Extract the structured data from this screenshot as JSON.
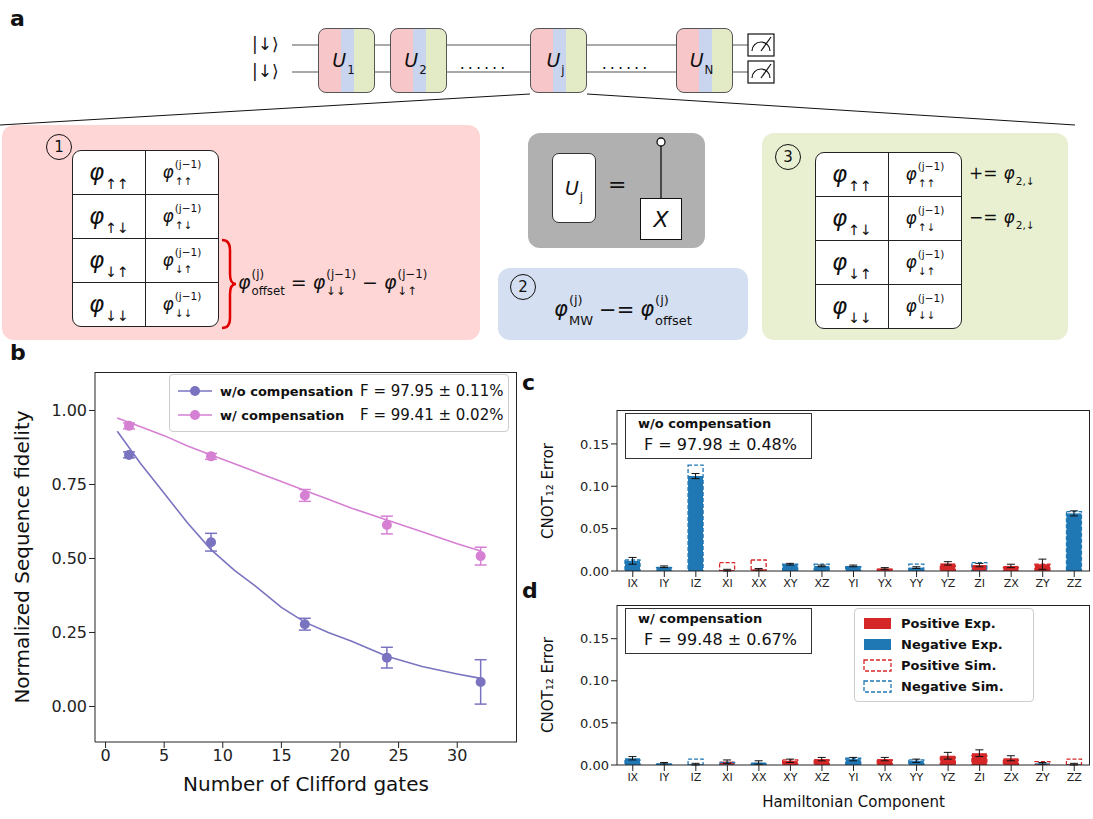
{
  "diagram": {
    "panel_label": "a",
    "inputs": [
      "|↓⟩",
      "|↓⟩"
    ],
    "sequence": [
      {
        "base": "U",
        "sub": "1"
      },
      {
        "base": "U",
        "sub": "2"
      },
      {
        "text": "......"
      },
      {
        "base": "U",
        "sub": "j"
      },
      {
        "text": "......"
      },
      {
        "base": "U",
        "sub": "N"
      }
    ],
    "step1": {
      "number": "1",
      "table": [
        [
          {
            "base": "φ",
            "sub": "↑↑"
          },
          {
            "base": "φ",
            "sub": "↑↑",
            "sup": "(j−1)"
          }
        ],
        [
          {
            "base": "φ",
            "sub": "↑↓"
          },
          {
            "base": "φ",
            "sub": "↑↓",
            "sup": "(j−1)"
          }
        ],
        [
          {
            "base": "φ",
            "sub": "↓↑"
          },
          {
            "base": "φ",
            "sub": "↓↑",
            "sup": "(j−1)"
          }
        ],
        [
          {
            "base": "φ",
            "sub": "↓↓"
          },
          {
            "base": "φ",
            "sub": "↓↓",
            "sup": "(j−1)"
          }
        ]
      ],
      "formula": [
        {
          "base": "φ",
          "sub": "offset",
          "sup": "(j)"
        },
        "=",
        {
          "base": "φ",
          "sub": "↓↓",
          "sup": "(j−1)"
        },
        "−",
        {
          "base": "φ",
          "sub": "↓↑",
          "sup": "(j−1)"
        }
      ]
    },
    "gate": {
      "lhs": {
        "base": "U",
        "sub": "j"
      },
      "relation": "=",
      "target": "X"
    },
    "step2": {
      "number": "2",
      "formula": [
        {
          "base": "φ",
          "sub": "MW",
          "sup": "(j)"
        },
        "−=",
        {
          "base": "φ",
          "sub": "offset",
          "sup": "(j)"
        }
      ]
    },
    "step3": {
      "number": "3",
      "table": [
        [
          {
            "base": "φ",
            "sub": "↑↑"
          },
          {
            "base": "φ",
            "sub": "↑↑",
            "sup": "(j−1)"
          }
        ],
        [
          {
            "base": "φ",
            "sub": "↑↓"
          },
          {
            "base": "φ",
            "sub": "↑↓",
            "sup": "(j−1)"
          }
        ],
        [
          {
            "base": "φ",
            "sub": "↓↑"
          },
          {
            "base": "φ",
            "sub": "↓↑",
            "sup": "(j−1)"
          }
        ],
        [
          {
            "base": "φ",
            "sub": "↓↓"
          },
          {
            "base": "φ",
            "sub": "↓↓",
            "sup": "(j−1)"
          }
        ]
      ],
      "updates": [
        [
          "+=",
          {
            "base": "φ",
            "sub": "2,↓"
          }
        ],
        [
          "−=",
          {
            "base": "φ",
            "sub": "2,↓"
          }
        ]
      ]
    }
  },
  "chart_data": [
    {
      "panel_label": "b",
      "type": "scatter",
      "xlabel": "Number of Clifford gates",
      "ylabel": "Normalized Sequence fidelity",
      "xlim": [
        -0.9,
        35.1
      ],
      "xticks": [
        0,
        5,
        10,
        15,
        20,
        25,
        30
      ],
      "ylim": [
        -0.12,
        1.13
      ],
      "yticks": [
        {
          "value": 0,
          "label": "0.00"
        },
        {
          "value": 0.25,
          "label": "0.25"
        },
        {
          "value": 0.5,
          "label": "0.50"
        },
        {
          "value": 0.75,
          "label": "0.75"
        },
        {
          "value": 1,
          "label": "1.00"
        }
      ],
      "legend": "upper right",
      "series": [
        {
          "name": "w/o compensation",
          "fidelity": "F = 97.95 ± 0.11%",
          "color": "#7a74c0",
          "marker": "circle",
          "x": [
            2,
            9,
            17,
            24,
            32
          ],
          "values": [
            0.85,
            0.555,
            0.278,
            0.165,
            0.083
          ],
          "errors": [
            0.01,
            0.03,
            0.02,
            0.035,
            0.075
          ],
          "fit": {
            "x": [
              1,
              3,
              5,
              7,
              9,
              11,
              13,
              15,
              17,
              19,
              21,
              24,
              27,
              30,
              32
            ],
            "values": [
              0.93,
              0.82,
              0.72,
              0.62,
              0.53,
              0.46,
              0.4,
              0.335,
              0.285,
              0.25,
              0.22,
              0.17,
              0.135,
              0.11,
              0.095
            ]
          }
        },
        {
          "name": "w/ compensation",
          "fidelity": "F = 99.41 ± 0.02%",
          "color": "#d680d4",
          "marker": "circle",
          "x": [
            2,
            9,
            17,
            24,
            32
          ],
          "values": [
            0.948,
            0.845,
            0.713,
            0.613,
            0.508
          ],
          "errors": [
            0.01,
            0.01,
            0.02,
            0.03,
            0.03
          ],
          "fit": {
            "x": [
              1,
              3,
              5,
              7,
              9,
              11,
              13,
              15,
              17,
              19,
              21,
              24,
              27,
              30,
              32
            ],
            "values": [
              0.975,
              0.945,
              0.915,
              0.88,
              0.85,
              0.82,
              0.79,
              0.76,
              0.73,
              0.7,
              0.67,
              0.63,
              0.59,
              0.55,
              0.525
            ]
          }
        }
      ]
    },
    {
      "panel_label": "c",
      "type": "bar",
      "ylabel": "CNOT₁₂ Error",
      "annotation": [
        "w/o compensation",
        "F = 97.98 ± 0.48%"
      ],
      "categories": [
        "IX",
        "IY",
        "IZ",
        "XI",
        "XX",
        "XY",
        "XZ",
        "YI",
        "YX",
        "YY",
        "YZ",
        "ZI",
        "ZX",
        "ZY",
        "ZZ"
      ],
      "ylim": [
        0,
        0.19
      ],
      "yticks": [
        {
          "value": 0,
          "label": "0.00"
        },
        {
          "value": 0.05,
          "label": "0.05"
        },
        {
          "value": 0.1,
          "label": "0.10"
        },
        {
          "value": 0.15,
          "label": "0.15"
        }
      ],
      "series": [
        {
          "name": "Positive Exp.",
          "color": "#d62728",
          "line_style": "solid",
          "values": [
            null,
            null,
            null,
            0.001,
            0.002,
            null,
            null,
            null,
            0.003,
            null,
            0.009,
            0.007,
            0.006,
            0.008,
            null
          ],
          "errors": [
            null,
            null,
            null,
            0.001,
            0.001,
            null,
            null,
            null,
            0.001,
            null,
            0.002,
            0.002,
            0.002,
            0.006,
            null
          ]
        },
        {
          "name": "Negative Exp.",
          "color": "#1f77b4",
          "line_style": "solid",
          "values": [
            0.012,
            0.005,
            0.112,
            null,
            null,
            0.008,
            0.006,
            0.006,
            null,
            0.004,
            null,
            null,
            null,
            null,
            0.068
          ],
          "errors": [
            0.004,
            0.001,
            0.003,
            null,
            null,
            0.001,
            0.001,
            0.001,
            null,
            0.001,
            null,
            null,
            null,
            null,
            0.003
          ]
        },
        {
          "name": "Positive Sim.",
          "color": "#d62728",
          "line_style": "dashed",
          "values": [
            null,
            null,
            null,
            0.01,
            0.013,
            null,
            null,
            null,
            0.002,
            null,
            0.006,
            null,
            0.004,
            0.008,
            null
          ]
        },
        {
          "name": "Negative Sim.",
          "color": "#1f77b4",
          "line_style": "dashed",
          "values": [
            0.013,
            0.004,
            0.125,
            null,
            null,
            0.008,
            0.008,
            0.005,
            null,
            0.008,
            null,
            0.01,
            null,
            null,
            0.07
          ]
        }
      ]
    },
    {
      "panel_label": "d",
      "type": "bar",
      "xlabel": "Hamiltonian Component",
      "ylabel": "CNOT₁₂ Error",
      "annotation": [
        "w/ compensation",
        "F = 99.48 ± 0.67%"
      ],
      "legend": "upper right",
      "categories": [
        "IX",
        "IY",
        "IZ",
        "XI",
        "XX",
        "XY",
        "XZ",
        "YI",
        "YX",
        "YY",
        "YZ",
        "ZI",
        "ZX",
        "ZY",
        "ZZ"
      ],
      "ylim": [
        0,
        0.19
      ],
      "yticks": [
        {
          "value": 0,
          "label": "0.00"
        },
        {
          "value": 0.05,
          "label": "0.05"
        },
        {
          "value": 0.1,
          "label": "0.10"
        },
        {
          "value": 0.15,
          "label": "0.15"
        }
      ],
      "series": [
        {
          "name": "Positive Exp.",
          "color": "#d62728",
          "line_style": "solid",
          "values": [
            null,
            null,
            null,
            0.004,
            null,
            0.005,
            0.007,
            null,
            0.007,
            null,
            0.011,
            0.014,
            0.008,
            null,
            null
          ],
          "errors": [
            null,
            null,
            null,
            0.002,
            null,
            0.002,
            0.002,
            null,
            0.002,
            null,
            0.004,
            0.004,
            0.003,
            null,
            null
          ]
        },
        {
          "name": "Negative Exp.",
          "color": "#1f77b4",
          "line_style": "solid",
          "values": [
            0.008,
            0.002,
            0.001,
            null,
            0.003,
            null,
            null,
            0.007,
            null,
            0.005,
            null,
            null,
            null,
            0.002,
            0.001
          ],
          "errors": [
            0.002,
            0.001,
            0.001,
            null,
            0.002,
            null,
            null,
            0.002,
            null,
            0.002,
            null,
            null,
            null,
            0.001,
            0.001
          ]
        },
        {
          "name": "Positive Sim.",
          "color": "#d62728",
          "line_style": "dashed",
          "values": [
            null,
            null,
            null,
            null,
            null,
            0.006,
            0.006,
            null,
            0.006,
            null,
            0.009,
            0.011,
            0.006,
            0.004,
            0.007
          ]
        },
        {
          "name": "Negative Sim.",
          "color": "#1f77b4",
          "line_style": "dashed",
          "values": [
            0.006,
            0.001,
            0.007,
            0.003,
            0.001,
            null,
            null,
            0.008,
            null,
            0.006,
            null,
            null,
            null,
            null,
            null
          ]
        }
      ]
    }
  ]
}
